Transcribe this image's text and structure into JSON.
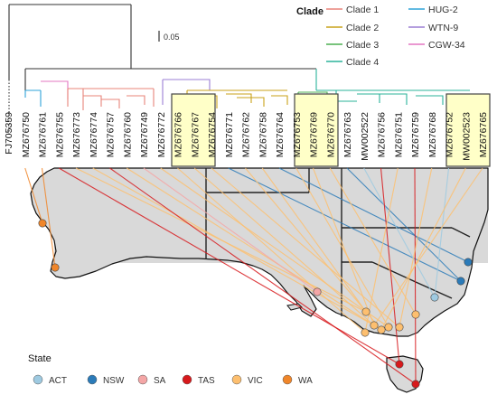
{
  "scale_bar": {
    "label": "0.05"
  },
  "clade_legend": {
    "title": "Clade",
    "entries": [
      {
        "label": "Clade 1",
        "color": "#e8847a"
      },
      {
        "label": "Clade 2",
        "color": "#c9a21a"
      },
      {
        "label": "Clade 3",
        "color": "#4caf50"
      },
      {
        "label": "Clade 4",
        "color": "#2bb39a"
      },
      {
        "label": "HUG-2",
        "color": "#2ea3d8"
      },
      {
        "label": "WTN-9",
        "color": "#9b7fd4"
      },
      {
        "label": "CGW-34",
        "color": "#e377c2"
      }
    ]
  },
  "taxa": [
    {
      "label": "FJ705359",
      "highlighted": false
    },
    {
      "label": "MZ676750",
      "highlighted": false
    },
    {
      "label": "MZ676761",
      "highlighted": false
    },
    {
      "label": "MZ676755",
      "highlighted": false
    },
    {
      "label": "MZ676773",
      "highlighted": false
    },
    {
      "label": "MZ676774",
      "highlighted": false
    },
    {
      "label": "MZ676757",
      "highlighted": false
    },
    {
      "label": "MZ676760",
      "highlighted": false
    },
    {
      "label": "MZ676749",
      "highlighted": false
    },
    {
      "label": "MZ676772",
      "highlighted": false
    },
    {
      "label": "MZ676766",
      "highlighted": true
    },
    {
      "label": "MZ676767",
      "highlighted": true
    },
    {
      "label": "MZ676754",
      "highlighted": false
    },
    {
      "label": "MZ676771",
      "highlighted": false
    },
    {
      "label": "MZ676762",
      "highlighted": false
    },
    {
      "label": "MZ676758",
      "highlighted": false
    },
    {
      "label": "MZ676764",
      "highlighted": false
    },
    {
      "label": "MZ676753",
      "highlighted": false
    },
    {
      "label": "MZ676769",
      "highlighted": true
    },
    {
      "label": "MZ676770",
      "highlighted": true
    },
    {
      "label": "MZ676763",
      "highlighted": false
    },
    {
      "label": "MW002522",
      "highlighted": false
    },
    {
      "label": "MZ676756",
      "highlighted": false
    },
    {
      "label": "MZ676751",
      "highlighted": false
    },
    {
      "label": "MZ676759",
      "highlighted": false
    },
    {
      "label": "MZ676768",
      "highlighted": false
    },
    {
      "label": "MZ676752",
      "highlighted": false
    },
    {
      "label": "MW002523",
      "highlighted": true
    },
    {
      "label": "MZ676765",
      "highlighted": true
    }
  ],
  "state_legend": {
    "title": "State",
    "entries": [
      {
        "label": "ACT",
        "color": "#9ecae1"
      },
      {
        "label": "NSW",
        "color": "#2b7bb9"
      },
      {
        "label": "SA",
        "color": "#f4a6a6"
      },
      {
        "label": "TAS",
        "color": "#d7191c"
      },
      {
        "label": "VIC",
        "color": "#fdbf6f"
      },
      {
        "label": "WA",
        "color": "#f0862a"
      }
    ]
  }
}
